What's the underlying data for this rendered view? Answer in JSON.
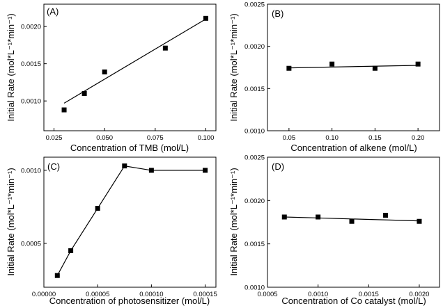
{
  "figure": {
    "panels": [
      {
        "label": "(A)",
        "xlabel": "Concentration of TMB (mol/L)",
        "ylabel": "Initial Rate (mol*L⁻¹*min⁻¹)"
      },
      {
        "label": "(B)",
        "xlabel": "Concentration of alkene (mol/L)",
        "ylabel": "Initial Rate (mol*L⁻¹*min⁻¹)"
      },
      {
        "label": "(C)",
        "xlabel": "Concentration of photosensitizer (mol/L)",
        "ylabel": "Initial Rate (mol*L⁻¹*min⁻¹)"
      },
      {
        "label": "(D)",
        "xlabel": "Concentration of Co catalyst (mol/L)",
        "ylabel": "Initial Rate (mol*L⁻¹*min⁻¹)"
      }
    ]
  },
  "chart_data": [
    {
      "type": "scatter",
      "panel": "(A)",
      "xlabel": "Concentration of TMB (mol/L)",
      "ylabel": "Initial Rate (mol*L⁻¹*min⁻¹)",
      "xlim": [
        0.02,
        0.105
      ],
      "ylim": [
        0.0006,
        0.0023
      ],
      "xticks": [
        "0.025",
        "0.050",
        "0.075",
        "0.100"
      ],
      "yticks": [
        "0.0010",
        "0.0015",
        "0.0020"
      ],
      "x": [
        0.03,
        0.04,
        0.05,
        0.08,
        0.1
      ],
      "y": [
        0.00088,
        0.0011,
        0.00139,
        0.00171,
        0.00211
      ],
      "fit": {
        "x": [
          0.03,
          0.1
        ],
        "y": [
          0.00097,
          0.0021
        ]
      }
    },
    {
      "type": "scatter",
      "panel": "(B)",
      "xlabel": "Concentration of alkene (mol/L)",
      "ylabel": "Initial Rate (mol*L⁻¹*min⁻¹)",
      "xlim": [
        0.025,
        0.225
      ],
      "ylim": [
        0.001,
        0.0025
      ],
      "xticks": [
        "0.05",
        "0.10",
        "0.15",
        "0.20"
      ],
      "yticks": [
        "0.0010",
        "0.0015",
        "0.0020",
        "0.0025"
      ],
      "x": [
        0.05,
        0.1,
        0.15,
        0.2
      ],
      "y": [
        0.00174,
        0.00179,
        0.00174,
        0.00179
      ],
      "fit": {
        "x": [
          0.05,
          0.2
        ],
        "y": [
          0.001745,
          0.001775
        ]
      }
    },
    {
      "type": "line",
      "panel": "(C)",
      "xlabel": "Concentration of photosensitizer (mol/L)",
      "ylabel": "Initial Rate (mol*L⁻¹*min⁻¹)",
      "xlim": [
        0.0,
        0.00016
      ],
      "ylim": [
        0.0002,
        0.00109
      ],
      "xticks": [
        "0.00000",
        "0.00005",
        "0.00010",
        "0.00015"
      ],
      "yticks": [
        "0.0005",
        "0.0010"
      ],
      "x": [
        1.25e-05,
        2.5e-05,
        5e-05,
        7.5e-05,
        0.0001,
        0.00015
      ],
      "y": [
        0.00028,
        0.00045,
        0.00074,
        0.00103,
        0.001,
        0.001
      ]
    },
    {
      "type": "scatter",
      "panel": "(D)",
      "xlabel": "Concentration of Co catalyst (mol/L)",
      "ylabel": "Initial Rate (mol*L⁻¹*min⁻¹)",
      "xlim": [
        0.0005,
        0.0022
      ],
      "ylim": [
        0.001,
        0.0025
      ],
      "xticks": [
        "0.0005",
        "0.0010",
        "0.0015",
        "0.0020"
      ],
      "yticks": [
        "0.0010",
        "0.0015",
        "0.0020",
        "0.0025"
      ],
      "x": [
        0.000667,
        0.001,
        0.001333,
        0.001667,
        0.002
      ],
      "y": [
        0.00181,
        0.00181,
        0.00176,
        0.00183,
        0.00176
      ],
      "fit": {
        "x": [
          0.000667,
          0.002
        ],
        "y": [
          0.00181,
          0.001765
        ]
      }
    }
  ]
}
